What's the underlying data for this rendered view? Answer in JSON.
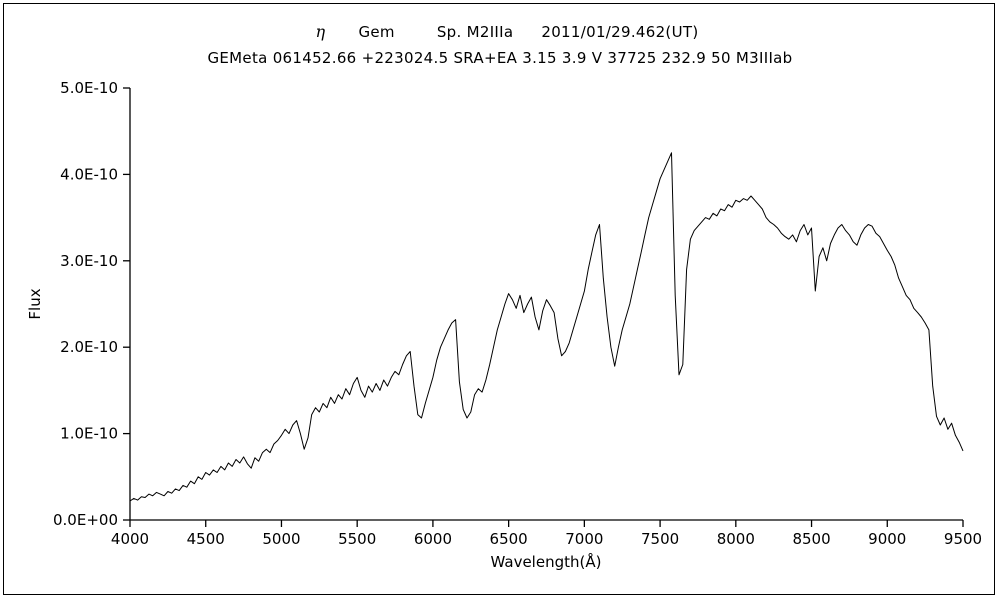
{
  "header": {
    "greek": "η",
    "star_name": "Gem",
    "spectral_type": "Sp. M2IIIa",
    "obs_date": "2011/01/29.462(UT)",
    "catalog_line": "GEMeta 061452.66 +223024.5 SRA+EA 3.15 3.9 V 37725 232.9 50 M3IIIab"
  },
  "chart_data": {
    "type": "line",
    "title": "η Gem  Sp. M2IIIa  2011/01/29.462(UT)",
    "subtitle": "GEMeta 061452.66 +223024.5 SRA+EA 3.15 3.9 V 37725 232.9 50 M3IIIab",
    "xlabel": "Wavelength(Å)",
    "ylabel": "Flux",
    "xlim": [
      4000,
      9500
    ],
    "ylim": [
      0,
      5
    ],
    "flux_unit": "1e-10",
    "line_color": "#000000",
    "grid": false,
    "legend": false,
    "x_ticks": [
      4000,
      4500,
      5000,
      5500,
      6000,
      6500,
      7000,
      7500,
      8000,
      8500,
      9000,
      9500
    ],
    "y_ticks": [
      0,
      1,
      2,
      3,
      4,
      5
    ],
    "y_tick_labels": [
      "0.0E+00",
      "1.0E-10",
      "2.0E-10",
      "3.0E-10",
      "4.0E-10",
      "5.0E-10"
    ],
    "x_start": 4000,
    "x_step": 25,
    "flux": [
      0.22,
      0.25,
      0.23,
      0.27,
      0.26,
      0.3,
      0.28,
      0.32,
      0.3,
      0.28,
      0.33,
      0.31,
      0.36,
      0.34,
      0.4,
      0.38,
      0.45,
      0.42,
      0.5,
      0.47,
      0.55,
      0.52,
      0.58,
      0.55,
      0.62,
      0.58,
      0.66,
      0.62,
      0.7,
      0.66,
      0.73,
      0.65,
      0.6,
      0.72,
      0.68,
      0.78,
      0.82,
      0.78,
      0.88,
      0.92,
      0.98,
      1.05,
      1.0,
      1.1,
      1.15,
      1.0,
      0.82,
      0.95,
      1.22,
      1.3,
      1.25,
      1.35,
      1.3,
      1.42,
      1.35,
      1.45,
      1.4,
      1.52,
      1.45,
      1.58,
      1.65,
      1.5,
      1.42,
      1.55,
      1.48,
      1.58,
      1.5,
      1.62,
      1.55,
      1.65,
      1.72,
      1.68,
      1.8,
      1.9,
      1.95,
      1.55,
      1.22,
      1.18,
      1.35,
      1.5,
      1.65,
      1.85,
      2.0,
      2.1,
      2.2,
      2.28,
      2.32,
      1.6,
      1.28,
      1.18,
      1.25,
      1.45,
      1.52,
      1.48,
      1.62,
      1.8,
      2.0,
      2.2,
      2.35,
      2.5,
      2.62,
      2.55,
      2.45,
      2.6,
      2.4,
      2.5,
      2.58,
      2.35,
      2.2,
      2.42,
      2.55,
      2.48,
      2.4,
      2.1,
      1.9,
      1.95,
      2.05,
      2.2,
      2.35,
      2.5,
      2.65,
      2.9,
      3.1,
      3.3,
      3.42,
      2.8,
      2.35,
      2.0,
      1.78,
      2.0,
      2.2,
      2.35,
      2.5,
      2.7,
      2.9,
      3.1,
      3.3,
      3.5,
      3.65,
      3.8,
      3.95,
      4.05,
      4.15,
      4.25,
      2.6,
      1.68,
      1.8,
      2.9,
      3.25,
      3.35,
      3.4,
      3.45,
      3.5,
      3.48,
      3.55,
      3.52,
      3.6,
      3.58,
      3.65,
      3.62,
      3.7,
      3.68,
      3.72,
      3.7,
      3.75,
      3.7,
      3.65,
      3.6,
      3.5,
      3.45,
      3.42,
      3.38,
      3.32,
      3.28,
      3.25,
      3.3,
      3.22,
      3.35,
      3.42,
      3.3,
      3.38,
      2.65,
      3.05,
      3.15,
      3.0,
      3.2,
      3.3,
      3.38,
      3.42,
      3.35,
      3.3,
      3.22,
      3.18,
      3.3,
      3.38,
      3.42,
      3.4,
      3.32,
      3.28,
      3.2,
      3.12,
      3.05,
      2.95,
      2.8,
      2.7,
      2.6,
      2.55,
      2.45,
      2.4,
      2.35,
      2.28,
      2.2,
      1.55,
      1.2,
      1.1,
      1.18,
      1.05,
      1.12,
      0.98,
      0.9,
      0.8
    ]
  }
}
